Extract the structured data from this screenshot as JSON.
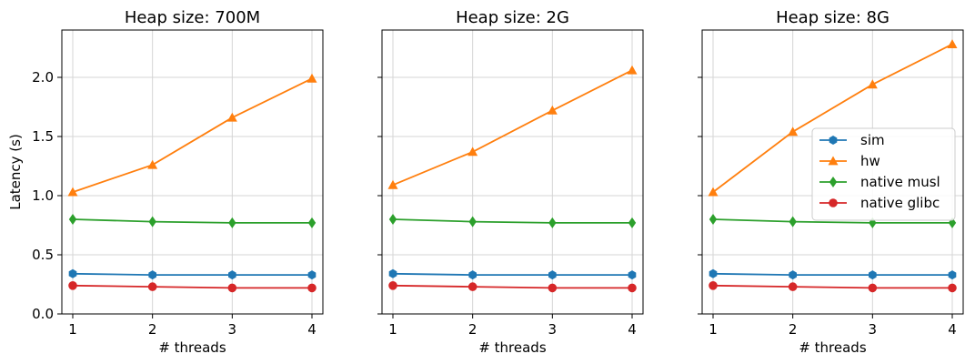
{
  "figure": {
    "ylabel": "Latency (s)"
  },
  "legend": {
    "placement": "center-right of third panel",
    "entries": [
      "sim",
      "hw",
      "native musl",
      "native glibc"
    ]
  },
  "chart_data": [
    {
      "type": "line",
      "title": "Heap size: 700M",
      "xlabel": "# threads",
      "ylabel": "Latency (s)",
      "x": [
        1,
        2,
        3,
        4
      ],
      "xticks": [
        "1",
        "2",
        "3",
        "4"
      ],
      "yticks": [
        "0.0",
        "0.5",
        "1.0",
        "1.5",
        "2.0"
      ],
      "ylim": [
        0.0,
        2.4
      ],
      "grid": true,
      "series": [
        {
          "name": "sim",
          "color": "#1f77b4",
          "marker": "hexagon",
          "values": [
            0.34,
            0.33,
            0.33,
            0.33
          ]
        },
        {
          "name": "hw",
          "color": "#ff7f0e",
          "marker": "triangle",
          "values": [
            1.03,
            1.26,
            1.66,
            1.99
          ]
        },
        {
          "name": "native musl",
          "color": "#2ca02c",
          "marker": "diamond",
          "values": [
            0.8,
            0.78,
            0.77,
            0.77
          ]
        },
        {
          "name": "native glibc",
          "color": "#d62728",
          "marker": "circle",
          "values": [
            0.24,
            0.23,
            0.22,
            0.22
          ]
        }
      ]
    },
    {
      "type": "line",
      "title": "Heap size: 2G",
      "xlabel": "# threads",
      "x": [
        1,
        2,
        3,
        4
      ],
      "xticks": [
        "1",
        "2",
        "3",
        "4"
      ],
      "ylim": [
        0.0,
        2.4
      ],
      "grid": true,
      "series": [
        {
          "name": "sim",
          "color": "#1f77b4",
          "marker": "hexagon",
          "values": [
            0.34,
            0.33,
            0.33,
            0.33
          ]
        },
        {
          "name": "hw",
          "color": "#ff7f0e",
          "marker": "triangle",
          "values": [
            1.09,
            1.37,
            1.72,
            2.06
          ]
        },
        {
          "name": "native musl",
          "color": "#2ca02c",
          "marker": "diamond",
          "values": [
            0.8,
            0.78,
            0.77,
            0.77
          ]
        },
        {
          "name": "native glibc",
          "color": "#d62728",
          "marker": "circle",
          "values": [
            0.24,
            0.23,
            0.22,
            0.22
          ]
        }
      ]
    },
    {
      "type": "line",
      "title": "Heap size: 8G",
      "xlabel": "# threads",
      "x": [
        1,
        2,
        3,
        4
      ],
      "xticks": [
        "1",
        "2",
        "3",
        "4"
      ],
      "ylim": [
        0.0,
        2.4
      ],
      "grid": true,
      "legend": true,
      "series": [
        {
          "name": "sim",
          "color": "#1f77b4",
          "marker": "hexagon",
          "values": [
            0.34,
            0.33,
            0.33,
            0.33
          ]
        },
        {
          "name": "hw",
          "color": "#ff7f0e",
          "marker": "triangle",
          "values": [
            1.03,
            1.54,
            1.94,
            2.28
          ]
        },
        {
          "name": "native musl",
          "color": "#2ca02c",
          "marker": "diamond",
          "values": [
            0.8,
            0.78,
            0.77,
            0.77
          ]
        },
        {
          "name": "native glibc",
          "color": "#d62728",
          "marker": "circle",
          "values": [
            0.24,
            0.23,
            0.22,
            0.22
          ]
        }
      ]
    }
  ]
}
